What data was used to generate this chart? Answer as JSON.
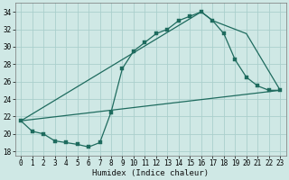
{
  "xlabel": "Humidex (Indice chaleur)",
  "bg_color": "#cfe8e5",
  "grid_color": "#aacfcc",
  "line_color": "#1e6b5e",
  "xlim": [
    -0.5,
    23.5
  ],
  "ylim": [
    17.5,
    35.0
  ],
  "xticks": [
    0,
    1,
    2,
    3,
    4,
    5,
    6,
    7,
    8,
    9,
    10,
    11,
    12,
    13,
    14,
    15,
    16,
    17,
    18,
    19,
    20,
    21,
    22,
    23
  ],
  "yticks": [
    18,
    20,
    22,
    24,
    26,
    28,
    30,
    32,
    34
  ],
  "line1_x": [
    0,
    1,
    2,
    3,
    4,
    5,
    6,
    7,
    8,
    9,
    10,
    11,
    12,
    13,
    14,
    15,
    16,
    17,
    18,
    19,
    20,
    21,
    22,
    23
  ],
  "line1_y": [
    21.5,
    20.3,
    20.0,
    19.2,
    19.0,
    18.8,
    18.5,
    19.0,
    22.5,
    27.5,
    29.5,
    30.5,
    31.5,
    32.0,
    33.0,
    33.5,
    34.0,
    33.0,
    31.5,
    28.5,
    26.5,
    25.5,
    25.0,
    25.0
  ],
  "line2_x": [
    0,
    23
  ],
  "line2_y": [
    21.5,
    25.0
  ],
  "line3_x": [
    0,
    16,
    17,
    20,
    23
  ],
  "line3_y": [
    21.5,
    34.0,
    33.0,
    31.5,
    25.0
  ],
  "xlabel_fontsize": 6.5,
  "tick_fontsize": 5.5
}
